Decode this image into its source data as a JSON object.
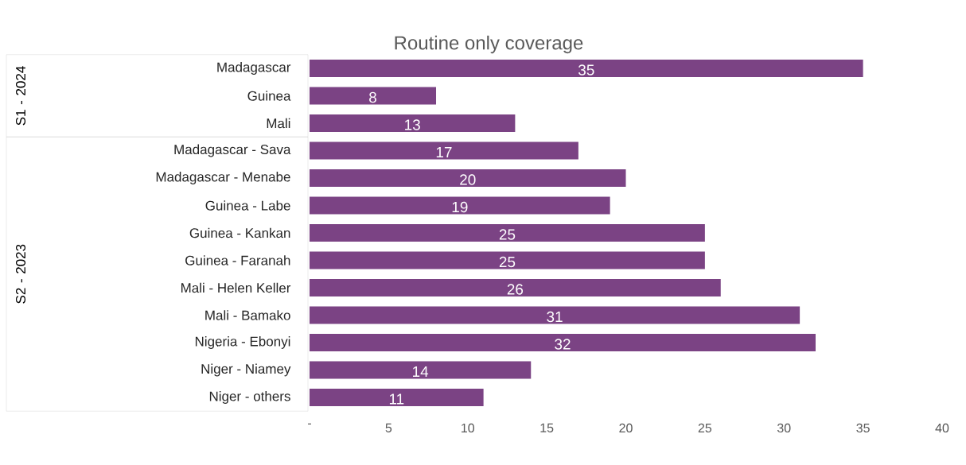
{
  "chart_data": {
    "type": "bar",
    "orientation": "horizontal",
    "title": "Routine only coverage",
    "categories": [
      "Madagascar",
      "Guinea",
      "Mali",
      "Madagascar - Sava",
      "Madagascar - Menabe",
      "Guinea - Labe",
      "Guinea - Kankan",
      "Guinea - Faranah",
      "Mali - Helen Keller",
      "Mali - Bamako",
      "Nigeria - Ebonyi",
      "Niger - Niamey",
      "Niger -  others"
    ],
    "values": [
      35,
      8,
      13,
      17,
      20,
      19,
      25,
      25,
      26,
      31,
      32,
      14,
      11
    ],
    "color": "#7b4384",
    "data_labels": true,
    "grid": false,
    "xlim": [
      0,
      40
    ],
    "xticks": [
      {
        "value": 0,
        "label": "-"
      },
      5,
      10,
      15,
      20,
      25,
      30,
      35,
      40
    ],
    "annotations": [
      "S1 - 2024",
      "S2 - 2023"
    ]
  }
}
